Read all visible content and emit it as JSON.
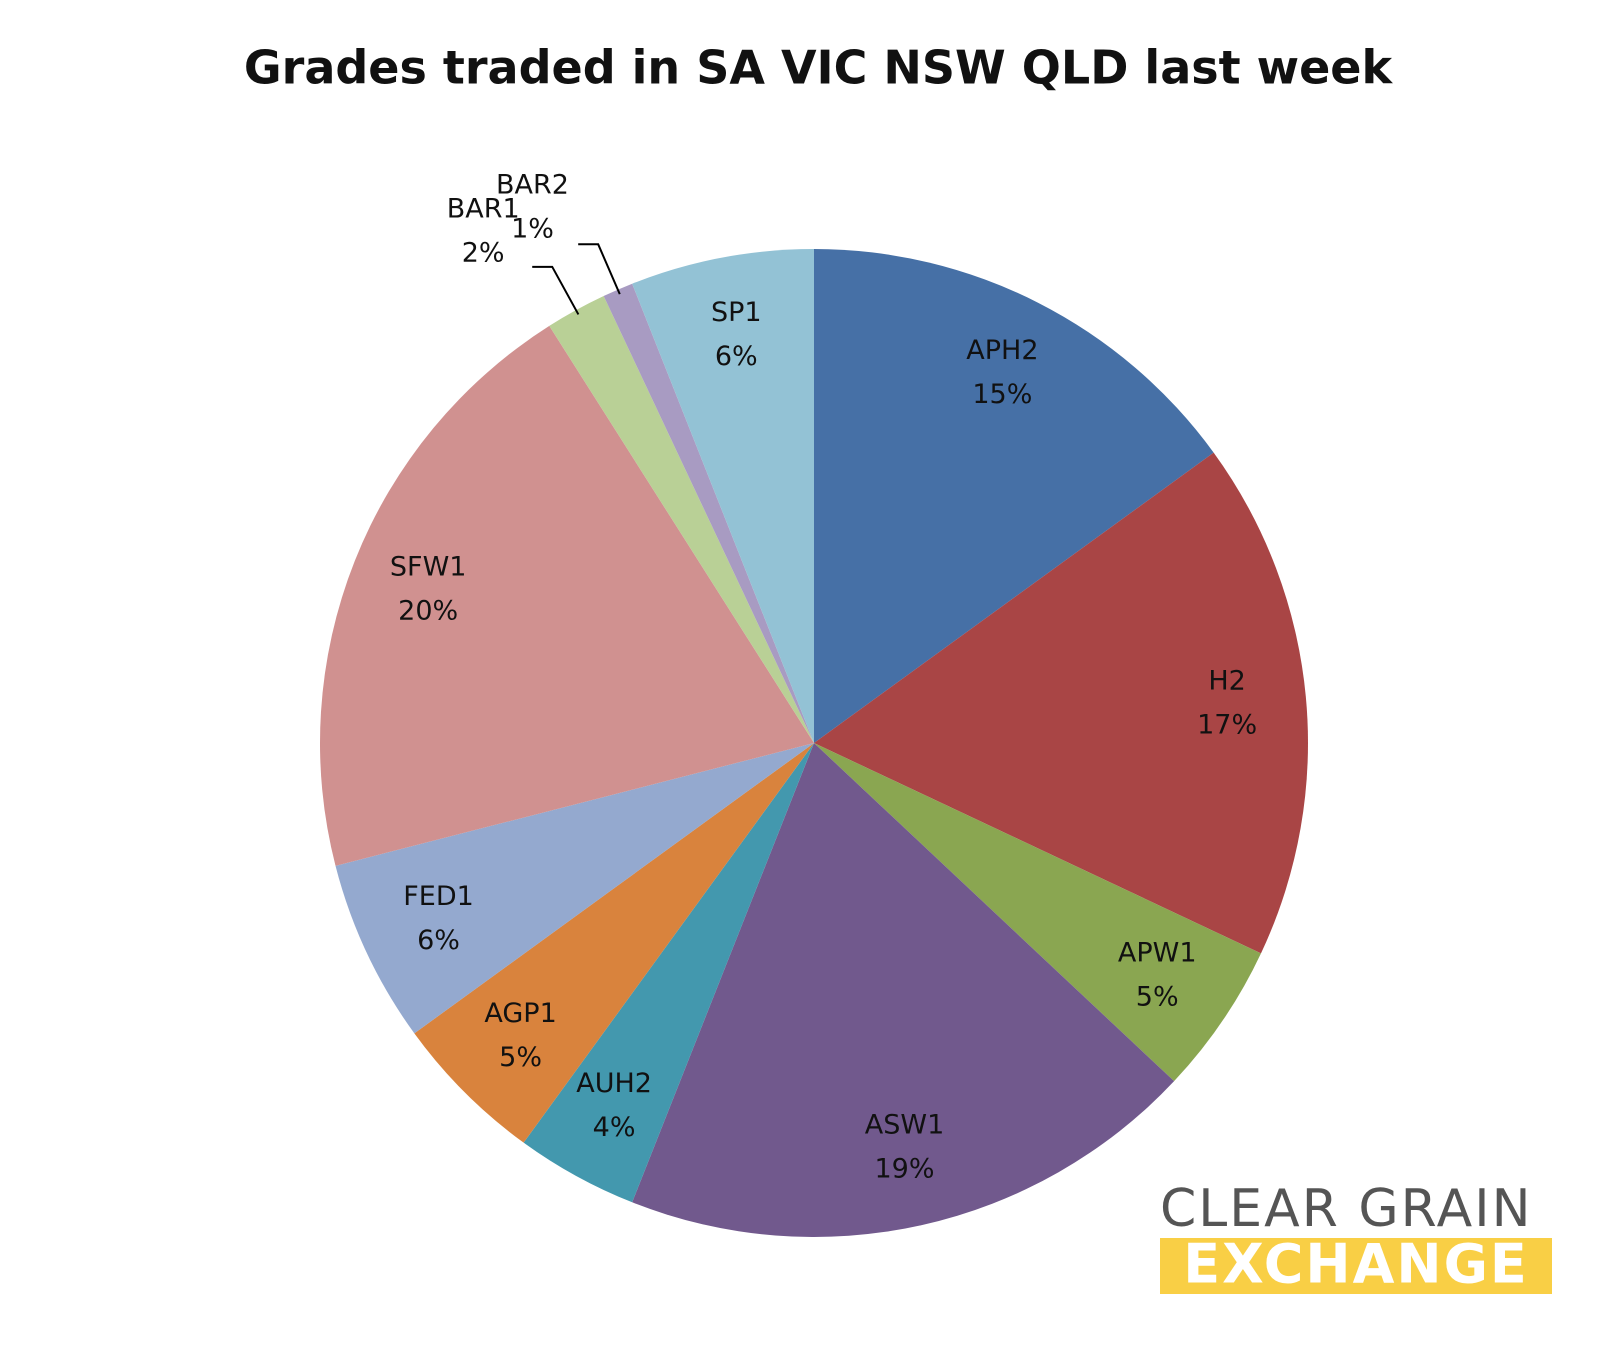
{
  "chart_data": {
    "type": "pie",
    "title": "Grades traded in SA VIC NSW QLD last week",
    "categories": [
      "APH2",
      "H2",
      "APW1",
      "ASW1",
      "AUH2",
      "AGP1",
      "FED1",
      "SFW1",
      "BAR1",
      "BAR2",
      "SP1"
    ],
    "values": [
      15,
      17,
      5,
      19,
      4,
      5,
      6,
      20,
      2,
      1,
      6
    ],
    "value_labels": [
      "15%",
      "17%",
      "5%",
      "19%",
      "4%",
      "5%",
      "6%",
      "20%",
      "2%",
      "1%",
      "6%"
    ],
    "colors": [
      "#4670a6",
      "#a94545",
      "#8aa651",
      "#71598d",
      "#4398ae",
      "#d9833d",
      "#94a9cf",
      "#d09190",
      "#b9d096",
      "#a89bc2",
      "#93c2d5"
    ],
    "annotations": [
      "CLEAR GRAIN",
      "EXCHANGE"
    ]
  }
}
